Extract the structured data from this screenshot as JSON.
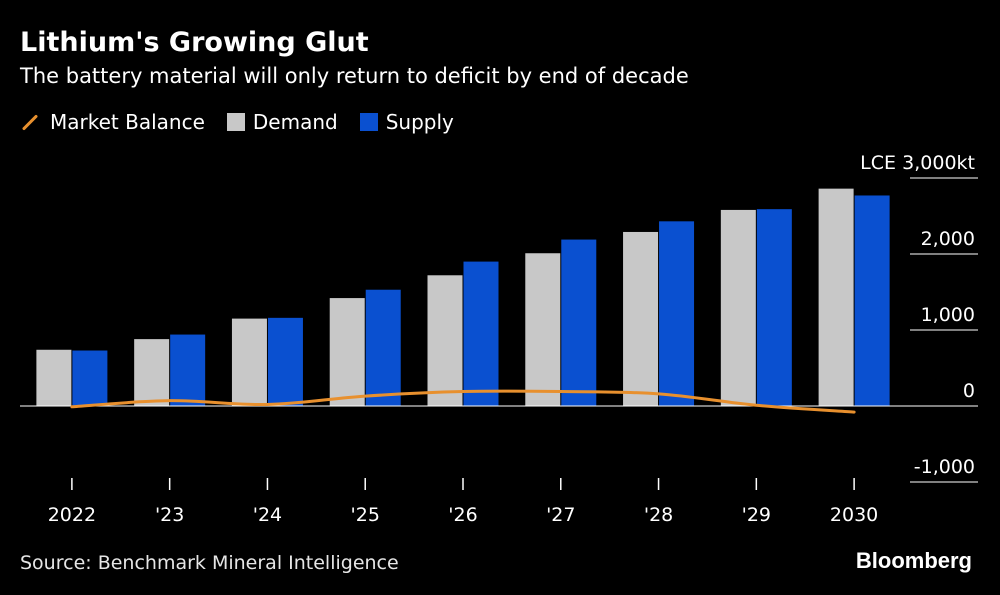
{
  "title": "Lithium's Growing Glut",
  "subtitle": "The battery material will only return to deficit by end of decade",
  "legend": {
    "market_balance": "Market Balance",
    "demand": "Demand",
    "supply": "Supply"
  },
  "source": "Source: Benchmark Mineral Intelligence",
  "brand": "Bloomberg",
  "colors": {
    "background": "#000000",
    "demand": "#c8c8c8",
    "supply": "#0a50d0",
    "market_balance": "#e8902e",
    "gridline": "#ffffff"
  },
  "chart_data": {
    "type": "bar",
    "categories": [
      "2022",
      "'23",
      "'24",
      "'25",
      "'26",
      "'27",
      "'28",
      "'29",
      "2030"
    ],
    "series": [
      {
        "name": "Demand",
        "type": "bar",
        "values": [
          740,
          880,
          1150,
          1420,
          1720,
          2010,
          2290,
          2580,
          2860
        ]
      },
      {
        "name": "Supply",
        "type": "bar",
        "values": [
          730,
          940,
          1160,
          1530,
          1900,
          2190,
          2430,
          2590,
          2770
        ]
      },
      {
        "name": "Market Balance",
        "type": "line",
        "values": [
          -10,
          70,
          20,
          130,
          190,
          190,
          160,
          10,
          -80
        ]
      }
    ],
    "y_unit_label": "LCE",
    "y_ticks": [
      "3,000kt",
      "2,000",
      "1,000",
      "0",
      "-1,000"
    ],
    "y_tick_values": [
      3000,
      2000,
      1000,
      0,
      -1000
    ],
    "ylim": [
      -1000,
      3000
    ],
    "grid": true,
    "legend_position": "top-left",
    "y_axis_position": "right"
  }
}
